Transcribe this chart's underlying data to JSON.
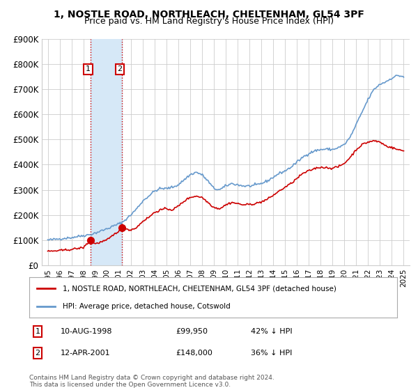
{
  "title": "1, NOSTLE ROAD, NORTHLEACH, CHELTENHAM, GL54 3PF",
  "subtitle": "Price paid vs. HM Land Registry's House Price Index (HPI)",
  "legend_label_red": "1, NOSTLE ROAD, NORTHLEACH, CHELTENHAM, GL54 3PF (detached house)",
  "legend_label_blue": "HPI: Average price, detached house, Cotswold",
  "footnote": "Contains HM Land Registry data © Crown copyright and database right 2024.\nThis data is licensed under the Open Government Licence v3.0.",
  "sale_points": [
    {
      "label": "1",
      "date_num": 1998.608,
      "price": 99950,
      "text_date": "10-AUG-1998",
      "text_price": "£99,950",
      "text_hpi": "42% ↓ HPI"
    },
    {
      "label": "2",
      "date_num": 2001.278,
      "price": 148000,
      "text_date": "12-APR-2001",
      "text_price": "£148,000",
      "text_hpi": "36% ↓ HPI"
    }
  ],
  "ylim": [
    0,
    900000
  ],
  "yticks": [
    0,
    100000,
    200000,
    300000,
    400000,
    500000,
    600000,
    700000,
    800000,
    900000
  ],
  "ytick_labels": [
    "£0",
    "£100K",
    "£200K",
    "£300K",
    "£400K",
    "£500K",
    "£600K",
    "£700K",
    "£800K",
    "£900K"
  ],
  "xlim": [
    1994.5,
    2025.5
  ],
  "red_color": "#cc0000",
  "blue_color": "#6699cc",
  "shade_color": "#d6e8f7",
  "marker_box_color": "#cc0000",
  "grid_color": "#cccccc",
  "bg_color": "#ffffff"
}
